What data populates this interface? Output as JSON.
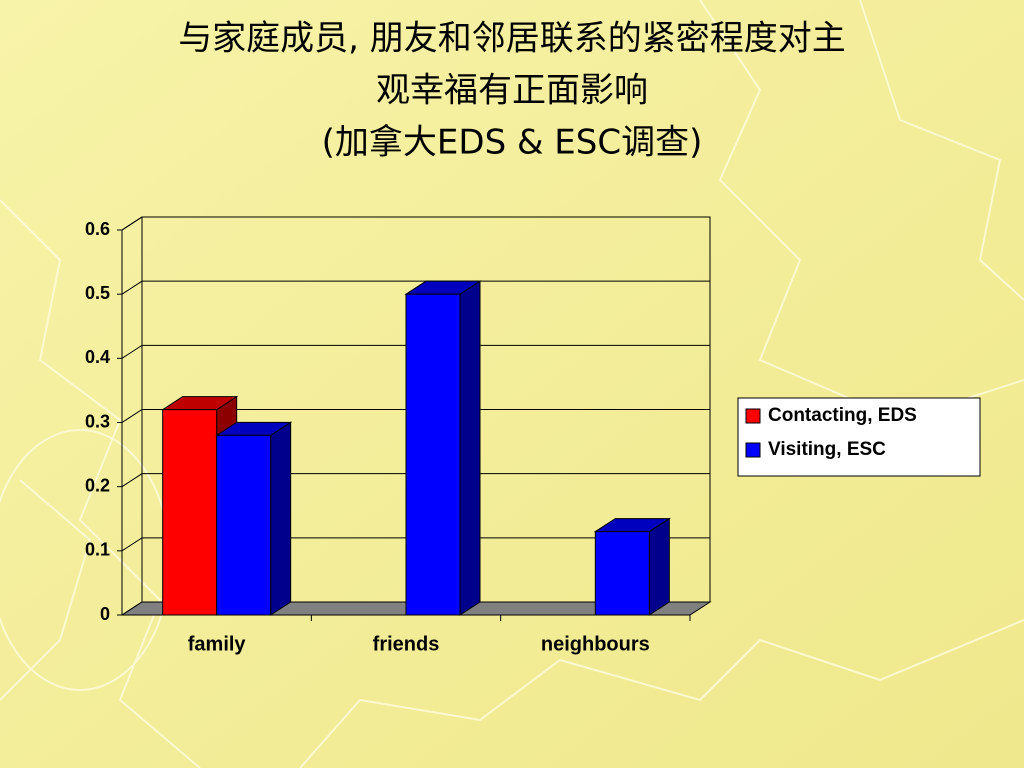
{
  "chart_data": {
    "type": "bar3d",
    "title_lines": [
      "与家庭成员, 朋友和邻居联系的紧密程度对主",
      "观幸福有正面影响",
      "(加拿大EDS & ESC调查)"
    ],
    "categories": [
      "family",
      "friends",
      "neighbours"
    ],
    "series": [
      {
        "name": "Contacting, EDS",
        "color": "#ff0000",
        "values": [
          0.32,
          null,
          null
        ]
      },
      {
        "name": "Visiting, ESC",
        "color": "#0000ff",
        "values": [
          0.28,
          0.5,
          0.13
        ]
      }
    ],
    "ylim": [
      0,
      0.6
    ],
    "yticks": [
      0,
      0.1,
      0.2,
      0.3,
      0.4,
      0.5,
      0.6
    ],
    "grid": true
  }
}
